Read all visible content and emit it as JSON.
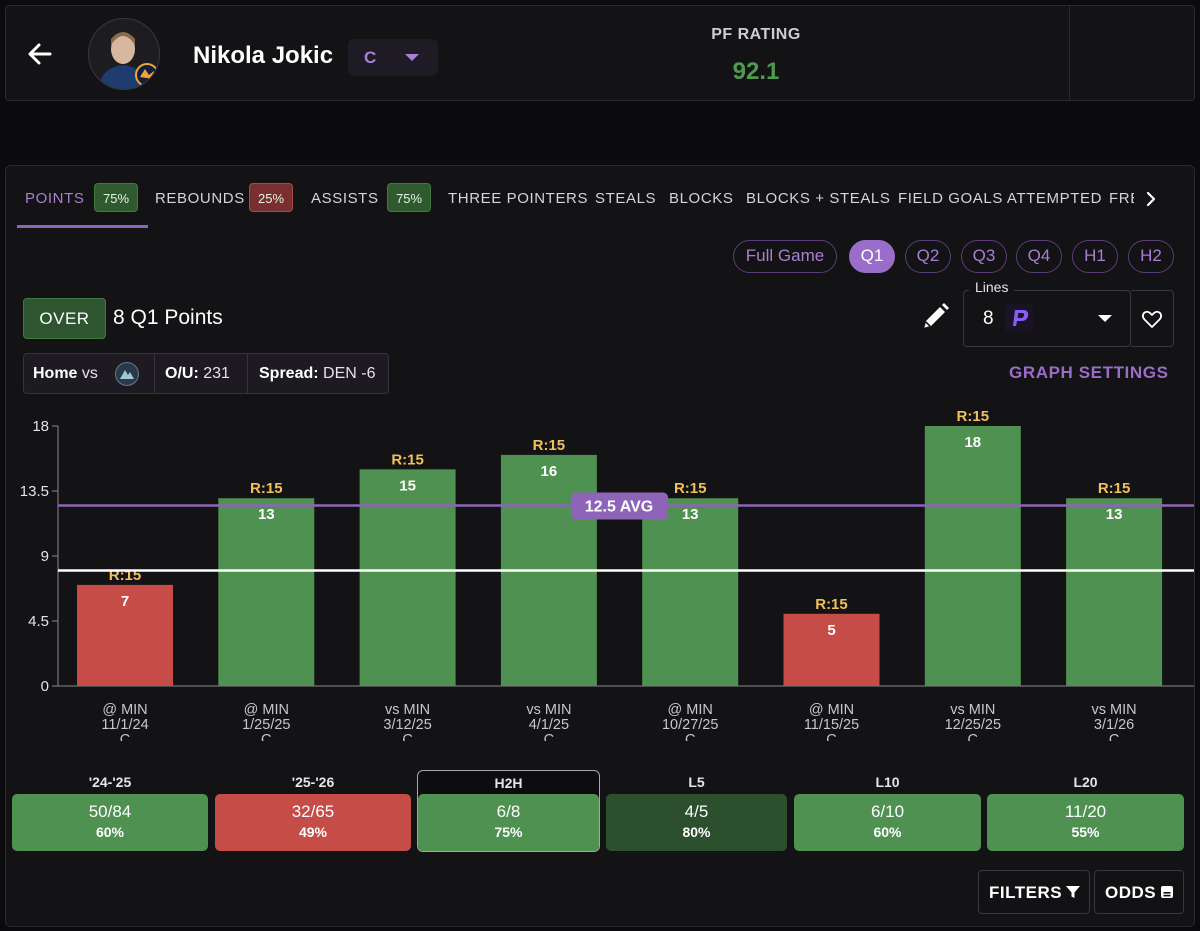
{
  "header": {
    "player_name": "Nikola Jokic",
    "position": "C",
    "pf_rating_label": "PF RATING",
    "pf_rating_value": "92.1"
  },
  "tabs": [
    {
      "label": "POINTS",
      "badge": "75%",
      "badge_color": "#2f5a2f",
      "active": true
    },
    {
      "label": "REBOUNDS",
      "badge": "25%",
      "badge_color": "#7a2f2f"
    },
    {
      "label": "ASSISTS",
      "badge": "75%",
      "badge_color": "#2f5a2f"
    },
    {
      "label": "THREE POINTERS"
    },
    {
      "label": "STEALS"
    },
    {
      "label": "BLOCKS"
    },
    {
      "label": "BLOCKS + STEALS"
    },
    {
      "label": "FIELD GOALS ATTEMPTED"
    },
    {
      "label": "FREE THROWS"
    }
  ],
  "periods": [
    "Full Game",
    "Q1",
    "Q2",
    "Q3",
    "Q4",
    "H1",
    "H2"
  ],
  "selected_period": "Q1",
  "prop": {
    "side": "OVER",
    "title": "8 Q1 Points",
    "lines_label": "Lines",
    "line_value": "8"
  },
  "matchup": {
    "location": "Home",
    "vs": "vs",
    "ou_label": "O/U:",
    "ou_value": "231",
    "spread_label": "Spread:",
    "spread_value": "DEN -6"
  },
  "graph_settings_label": "GRAPH SETTINGS",
  "chart_data": {
    "type": "bar",
    "categories": [
      [
        "@ MIN",
        "11/1/24",
        "C"
      ],
      [
        "@ MIN",
        "1/25/25",
        "C"
      ],
      [
        "vs MIN",
        "3/12/25",
        "C"
      ],
      [
        "vs MIN",
        "4/1/25",
        "C"
      ],
      [
        "@ MIN",
        "10/27/25",
        "C"
      ],
      [
        "@ MIN",
        "11/15/25",
        "C"
      ],
      [
        "vs MIN",
        "12/25/25",
        "C"
      ],
      [
        "vs MIN",
        "3/1/26",
        "C"
      ]
    ],
    "values": [
      7,
      13,
      15,
      16,
      13,
      5,
      18,
      13
    ],
    "bar_labels": [
      "R:15",
      "R:15",
      "R:15",
      "R:15",
      "R:15",
      "R:15",
      "R:15",
      "R:15"
    ],
    "hit": [
      false,
      true,
      true,
      true,
      true,
      false,
      true,
      true
    ],
    "yticks": [
      "0",
      "4.5",
      "9",
      "13.5",
      "18"
    ],
    "ylim": [
      0,
      18
    ],
    "line": 8,
    "average": 12.5,
    "average_label": "12.5 AVG",
    "colors": {
      "hit": "#4e9150",
      "miss": "#c64c47",
      "avg_line": "#8e64b8",
      "prop_line": "#ffffff",
      "bar_label": "#f0c05a"
    }
  },
  "summary": [
    {
      "label": "'24-'25",
      "fraction": "50/84",
      "percent": "60%",
      "color": "#4e9150"
    },
    {
      "label": "'25-'26",
      "fraction": "32/65",
      "percent": "49%",
      "color": "#c64c47"
    },
    {
      "label": "H2H",
      "fraction": "6/8",
      "percent": "75%",
      "color": "#4e9150",
      "selected": true
    },
    {
      "label": "L5",
      "fraction": "4/5",
      "percent": "80%",
      "color": "#2c4f2d"
    },
    {
      "label": "L10",
      "fraction": "6/10",
      "percent": "60%",
      "color": "#4e9150"
    },
    {
      "label": "L20",
      "fraction": "11/20",
      "percent": "55%",
      "color": "#4e9150"
    }
  ],
  "footer": {
    "filters_label": "FILTERS",
    "odds_label": "ODDS"
  }
}
